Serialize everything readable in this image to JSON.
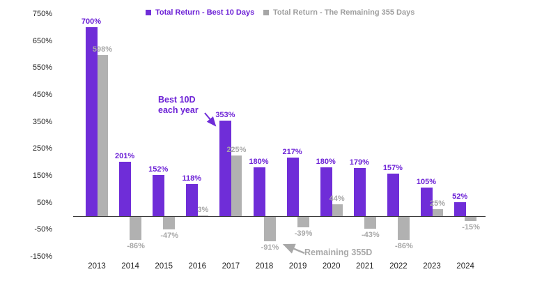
{
  "chart_data": {
    "type": "bar",
    "title": "",
    "categories": [
      "2013",
      "2014",
      "2015",
      "2016",
      "2017",
      "2018",
      "2019",
      "2020",
      "2021",
      "2022",
      "2023",
      "2024"
    ],
    "series": [
      {
        "name": "Total Return - Best 10 Days",
        "color": "#6f2dd8",
        "label_color": "#6c21d6",
        "values": [
          700,
          201,
          152,
          118,
          353,
          180,
          217,
          180,
          179,
          157,
          105,
          52
        ],
        "labels": [
          "700%",
          "201%",
          "152%",
          "118%",
          "353%",
          "180%",
          "217%",
          "180%",
          "179%",
          "157%",
          "105%",
          "52%"
        ]
      },
      {
        "name": "Total Return - The Remaining 355 Days",
        "color": "#b1b1b1",
        "label_color": "#a7a7a7",
        "values": [
          598,
          -86,
          -47,
          3,
          225,
          -91,
          -39,
          44,
          -43,
          -86,
          25,
          -15
        ],
        "labels": [
          "598%",
          "-86%",
          "-47%",
          "3%",
          "225%",
          "-91%",
          "-39%",
          "44%",
          "-43%",
          "-86%",
          "25%",
          "-15%"
        ]
      }
    ],
    "y_axis": {
      "tick_labels": [
        "750%",
        "650%",
        "550%",
        "450%",
        "350%",
        "250%",
        "150%",
        "50%",
        "-50%",
        "-150%"
      ],
      "tick_values": [
        750,
        650,
        550,
        450,
        350,
        250,
        150,
        50,
        -50,
        -150
      ],
      "min": -150,
      "max": 750
    },
    "xlabel": "",
    "ylabel": "",
    "grid": false,
    "legend_position": "top",
    "annotations": {
      "best10d": {
        "line1": "Best 10D",
        "line2": "each year",
        "color": "#6c21d6"
      },
      "remaining": {
        "text": "Remaining 355D",
        "color": "#a8a8a8"
      }
    }
  }
}
